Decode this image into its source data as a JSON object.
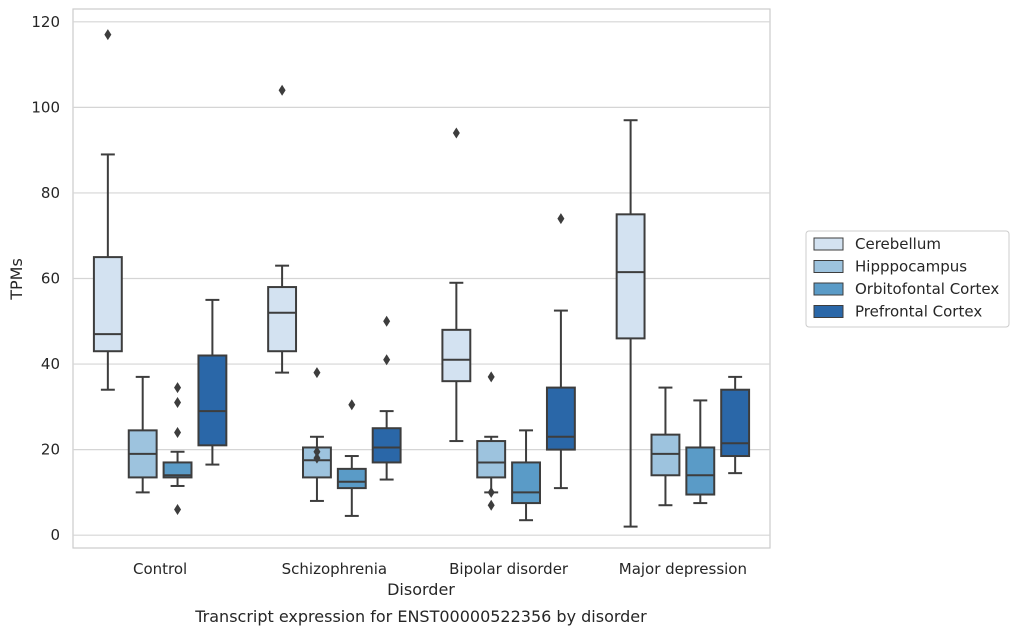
{
  "chart_data": {
    "type": "box",
    "xlabel": "Disorder",
    "ylabel": "TPMs",
    "caption": "Transcript expression for ENST00000522356 by disorder",
    "ylim": [
      -3,
      123
    ],
    "yticks": [
      0,
      20,
      40,
      60,
      80,
      100,
      120
    ],
    "grid": true,
    "legend_position": "right",
    "categories": [
      "Control",
      "Schizophrenia",
      "Bipolar disorder",
      "Major depression"
    ],
    "series": [
      {
        "name": "Cerebellum",
        "color": "#d3e2f1",
        "boxes": [
          {
            "whislo": 34,
            "q1": 43,
            "med": 47,
            "q3": 65,
            "whishi": 89,
            "fliers": [
              117
            ]
          },
          {
            "whislo": 38,
            "q1": 43,
            "med": 52,
            "q3": 58,
            "whishi": 63,
            "fliers": [
              104
            ]
          },
          {
            "whislo": 22,
            "q1": 36,
            "med": 41,
            "q3": 48,
            "whishi": 59,
            "fliers": [
              94
            ]
          },
          {
            "whislo": 2,
            "q1": 46,
            "med": 61.5,
            "q3": 75,
            "whishi": 97,
            "fliers": []
          }
        ]
      },
      {
        "name": "Hipppocampus",
        "color": "#9dc3de",
        "boxes": [
          {
            "whislo": 10,
            "q1": 13.5,
            "med": 19,
            "q3": 24.5,
            "whishi": 37,
            "fliers": []
          },
          {
            "whislo": 8,
            "q1": 13.5,
            "med": 17.5,
            "q3": 20.5,
            "whishi": 23,
            "fliers": [
              18,
              19.5,
              38
            ]
          },
          {
            "whislo": 10,
            "q1": 13.5,
            "med": 17,
            "q3": 22,
            "whishi": 23,
            "fliers": [
              7,
              10,
              37
            ]
          },
          {
            "whislo": 7,
            "q1": 14,
            "med": 19,
            "q3": 23.5,
            "whishi": 34.5,
            "fliers": []
          }
        ]
      },
      {
        "name": "Orbitofontal Cortex",
        "color": "#5a9bc7",
        "boxes": [
          {
            "whislo": 11.5,
            "q1": 13.5,
            "med": 14,
            "q3": 17,
            "whishi": 19.5,
            "fliers": [
              6,
              24,
              31,
              34.5
            ]
          },
          {
            "whislo": 4.5,
            "q1": 11,
            "med": 12.5,
            "q3": 15.5,
            "whishi": 18.5,
            "fliers": [
              30.5
            ]
          },
          {
            "whislo": 3.5,
            "q1": 7.5,
            "med": 10,
            "q3": 17,
            "whishi": 24.5,
            "fliers": []
          },
          {
            "whislo": 7.5,
            "q1": 9.5,
            "med": 14,
            "q3": 20.5,
            "whishi": 31.5,
            "fliers": []
          }
        ]
      },
      {
        "name": "Prefrontal Cortex",
        "color": "#2a67a8",
        "boxes": [
          {
            "whislo": 16.5,
            "q1": 21,
            "med": 29,
            "q3": 42,
            "whishi": 55,
            "fliers": []
          },
          {
            "whislo": 13,
            "q1": 17,
            "med": 20.5,
            "q3": 25,
            "whishi": 29,
            "fliers": [
              41,
              50
            ]
          },
          {
            "whislo": 11,
            "q1": 20,
            "med": 23,
            "q3": 34.5,
            "whishi": 52.5,
            "fliers": [
              74
            ]
          },
          {
            "whislo": 14.5,
            "q1": 18.5,
            "med": 21.5,
            "q3": 34,
            "whishi": 37,
            "fliers": []
          }
        ]
      }
    ]
  }
}
